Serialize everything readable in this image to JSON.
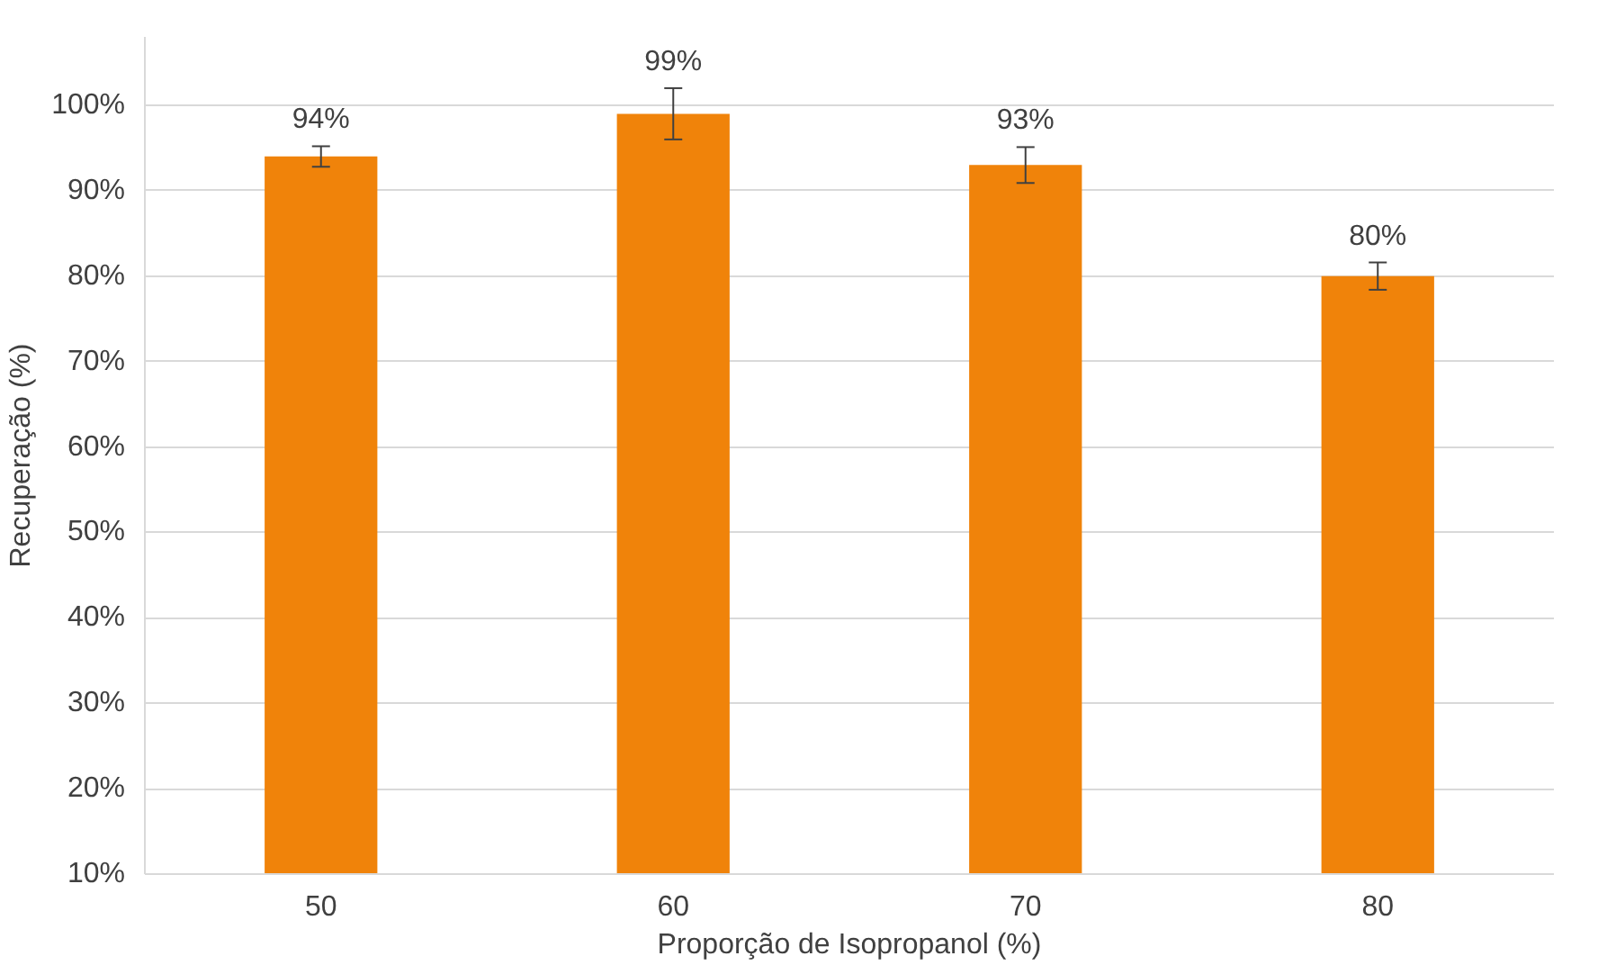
{
  "chart_data": {
    "type": "bar",
    "xlabel": "Proporção de Isopropanol (%)",
    "ylabel": "Recuperação (%)",
    "categories": [
      "50",
      "60",
      "70",
      "80"
    ],
    "values": [
      94,
      99,
      93,
      80
    ],
    "errors": [
      1.2,
      3.0,
      2.1,
      1.6
    ],
    "value_labels": [
      "94%",
      "99%",
      "93%",
      "80%"
    ],
    "color": "#f0830a",
    "ylim": [
      10,
      108
    ],
    "yticks": [
      {
        "value": 10,
        "label": "10%"
      },
      {
        "value": 20,
        "label": "20%"
      },
      {
        "value": 30,
        "label": "30%"
      },
      {
        "value": 40,
        "label": "40%"
      },
      {
        "value": 50,
        "label": "50%"
      },
      {
        "value": 60,
        "label": "60%"
      },
      {
        "value": 70,
        "label": "70%"
      },
      {
        "value": 80,
        "label": "80%"
      },
      {
        "value": 90,
        "label": "90%"
      },
      {
        "value": 100,
        "label": "100%"
      }
    ],
    "grid": "y"
  }
}
